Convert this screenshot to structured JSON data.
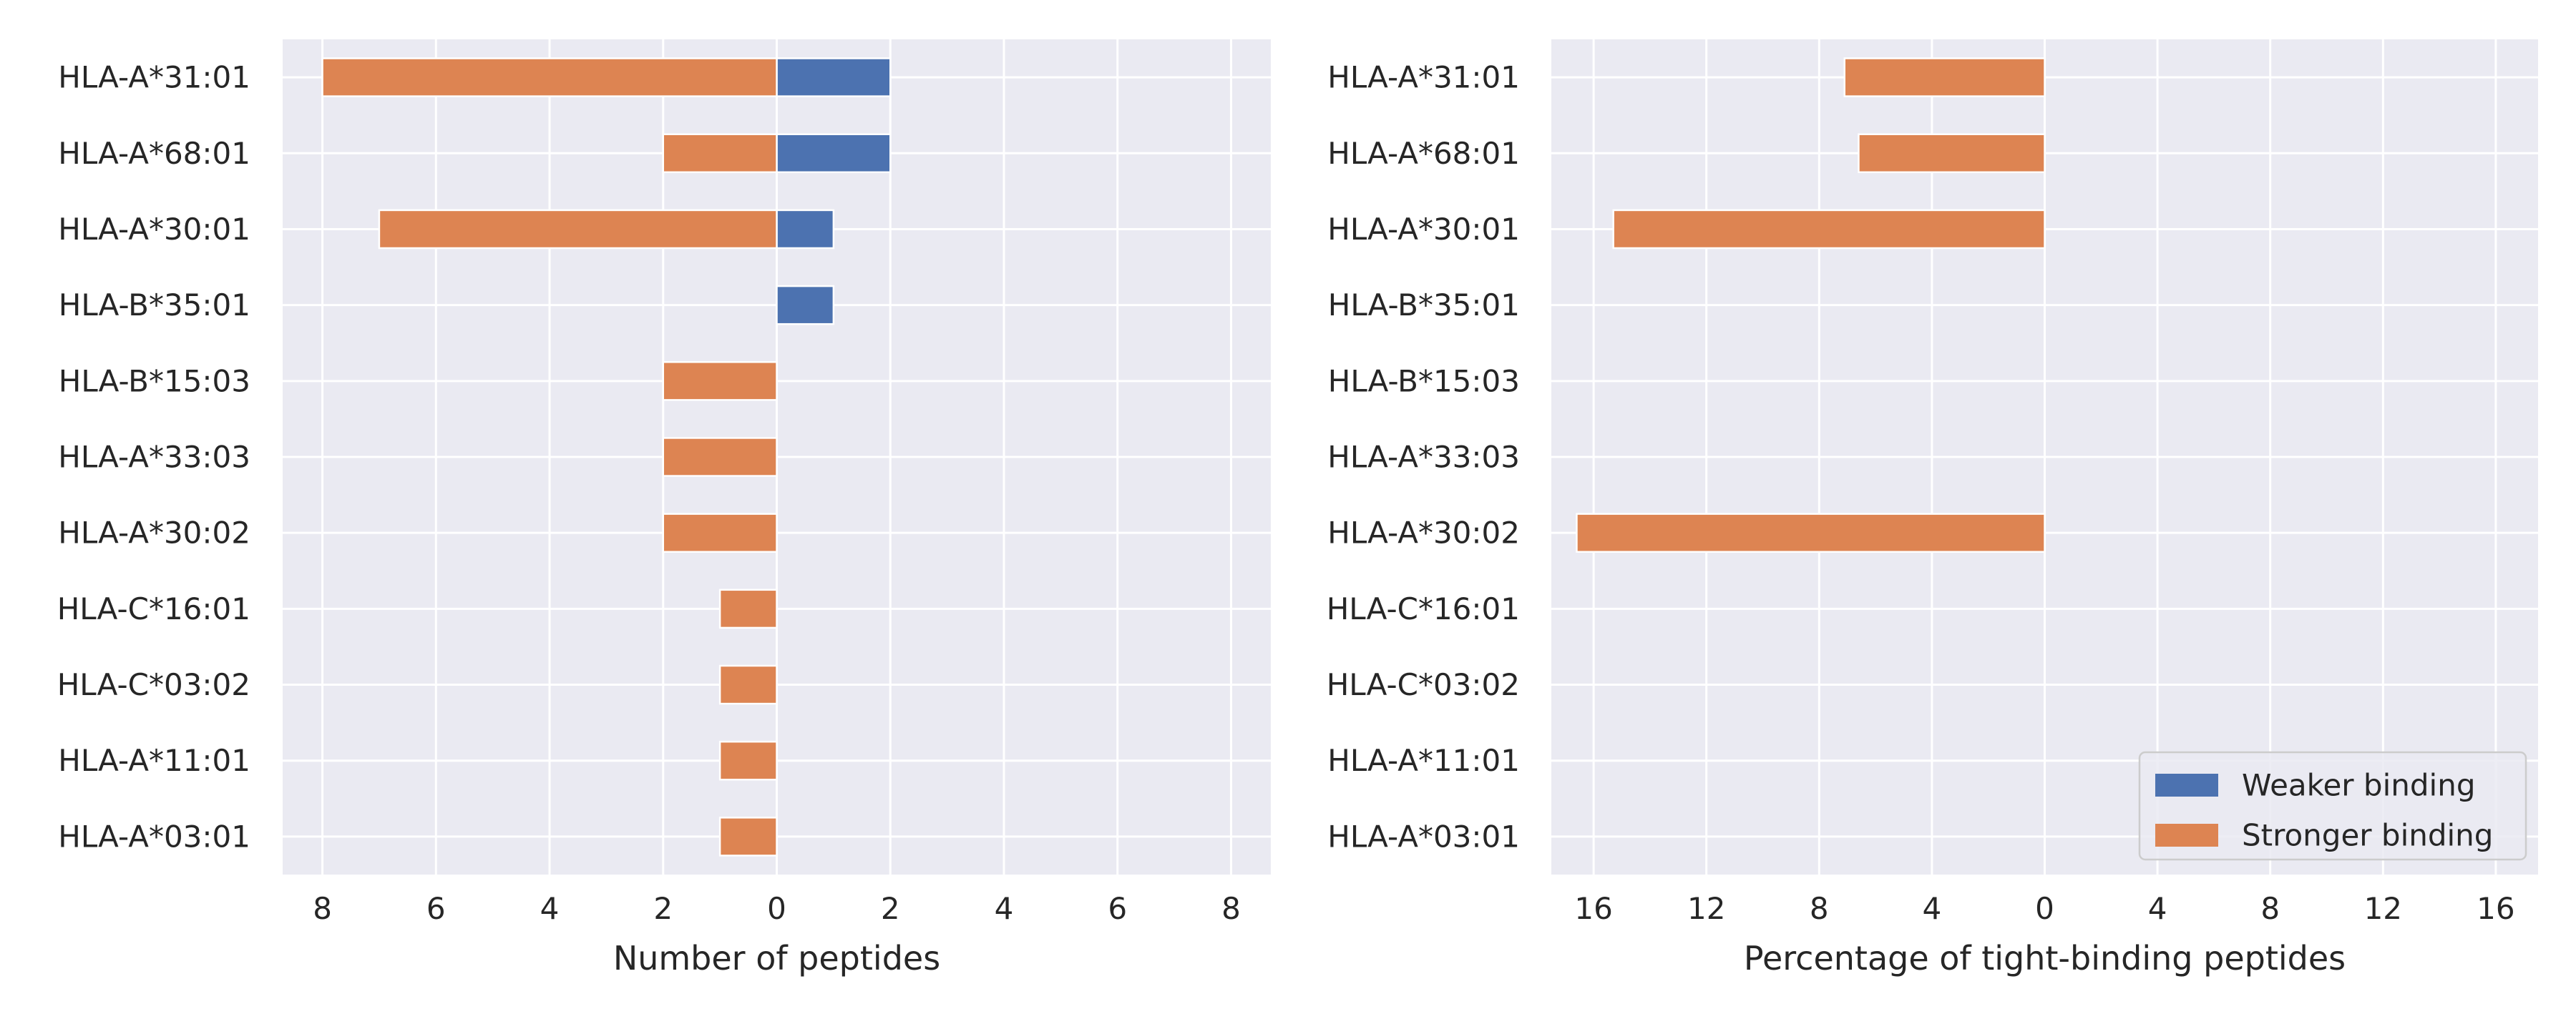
{
  "chart_data": [
    {
      "type": "bar",
      "orientation": "horizontal",
      "xlabel": "Number of peptides",
      "ylabel": "",
      "title": "",
      "xlim": [
        -8.7,
        8.7
      ],
      "xticks": [
        -8,
        -6,
        -4,
        -2,
        0,
        2,
        4,
        6,
        8
      ],
      "xtick_labels": [
        "8",
        "6",
        "4",
        "2",
        "0",
        "2",
        "4",
        "6",
        "8"
      ],
      "grid": true,
      "categories": [
        "HLA-A*31:01",
        "HLA-A*68:01",
        "HLA-A*30:01",
        "HLA-B*35:01",
        "HLA-B*15:03",
        "HLA-A*33:03",
        "HLA-A*30:02",
        "HLA-C*16:01",
        "HLA-C*03:02",
        "HLA-A*11:01",
        "HLA-A*03:01"
      ],
      "series": [
        {
          "name": "Weaker binding",
          "color": "#4c72b0",
          "direction": "right",
          "values": [
            2,
            2,
            1,
            1,
            0,
            0,
            0,
            0,
            0,
            0,
            0
          ]
        },
        {
          "name": "Stronger binding",
          "color": "#dd8452",
          "direction": "left",
          "values": [
            8,
            2,
            7,
            0,
            2,
            2,
            2,
            1,
            1,
            1,
            1
          ]
        }
      ]
    },
    {
      "type": "bar",
      "orientation": "horizontal",
      "xlabel": "Percentage of tight-binding peptides",
      "ylabel": "",
      "title": "",
      "xlim": [
        -17.5,
        17.5
      ],
      "xticks": [
        -16,
        -12,
        -8,
        -4,
        0,
        4,
        8,
        12,
        16
      ],
      "xtick_labels": [
        "16",
        "12",
        "8",
        "4",
        "0",
        "4",
        "8",
        "12",
        "16"
      ],
      "grid": true,
      "legend": {
        "placement": "lower-right",
        "entries": [
          {
            "label": "Weaker binding",
            "color": "#4c72b0"
          },
          {
            "label": "Stronger binding",
            "color": "#dd8452"
          }
        ]
      },
      "categories": [
        "HLA-A*31:01",
        "HLA-A*68:01",
        "HLA-A*30:01",
        "HLA-B*35:01",
        "HLA-B*15:03",
        "HLA-A*33:03",
        "HLA-A*30:02",
        "HLA-C*16:01",
        "HLA-C*03:02",
        "HLA-A*11:01",
        "HLA-A*03:01"
      ],
      "series": [
        {
          "name": "Weaker binding",
          "color": "#4c72b0",
          "direction": "right",
          "values": [
            0,
            0,
            0,
            0,
            0,
            0,
            0,
            0,
            0,
            0,
            0
          ]
        },
        {
          "name": "Stronger binding",
          "color": "#dd8452",
          "direction": "left",
          "values": [
            7.1,
            6.6,
            15.3,
            0,
            0,
            0,
            16.6,
            0,
            0,
            0,
            0
          ]
        }
      ]
    }
  ],
  "style": {
    "axes_background": "#eaeaf2",
    "grid_color": "#ffffff",
    "text_color": "#262626"
  }
}
